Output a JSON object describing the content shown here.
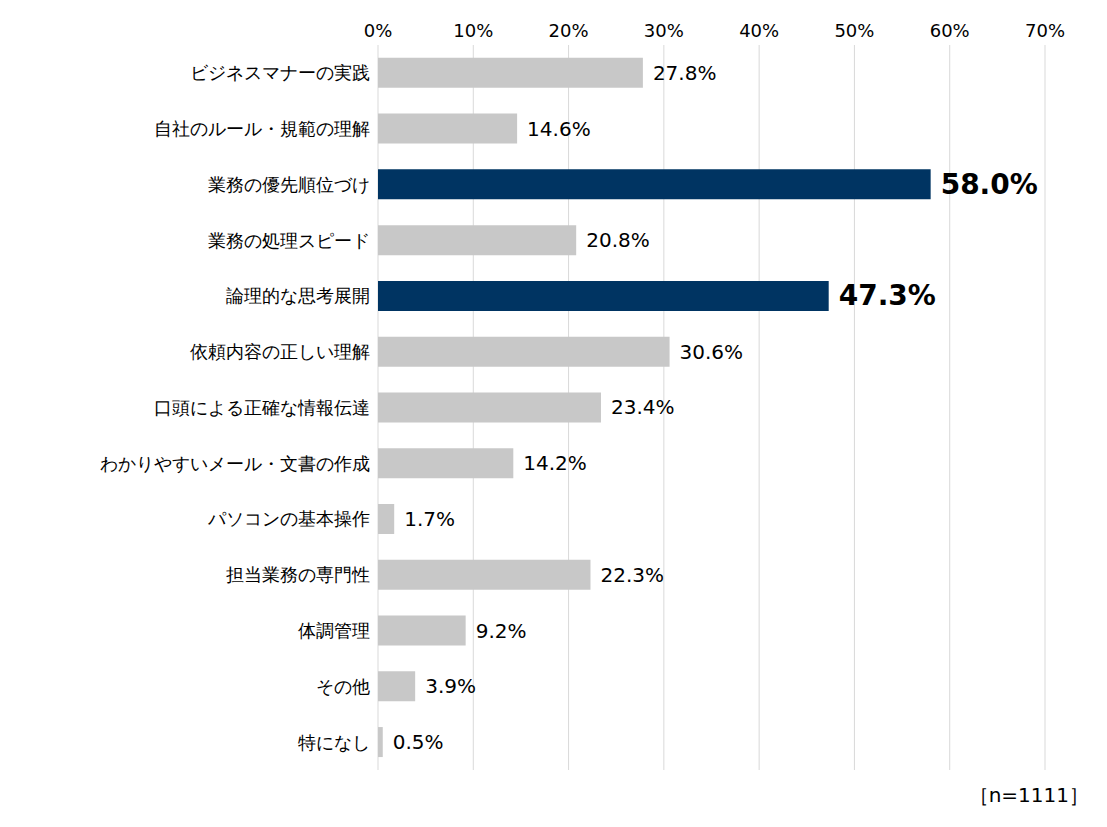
{
  "chart_data": {
    "type": "bar",
    "orientation": "horizontal",
    "categories": [
      "ビジネスマナーの実践",
      "自社のルール・規範の理解",
      "業務の優先順位づけ",
      "業務の処理スピード",
      "論理的な思考展開",
      "依頼内容の正しい理解",
      "口頭による正確な情報伝達",
      "わかりやすいメール・文書の作成",
      "パソコンの基本操作",
      "担当業務の専門性",
      "体調管理",
      "その他",
      "特になし"
    ],
    "values": [
      27.8,
      14.6,
      58.0,
      20.8,
      47.3,
      30.6,
      23.4,
      14.2,
      1.7,
      22.3,
      9.2,
      3.9,
      0.5
    ],
    "value_labels": [
      "27.8%",
      "14.6%",
      "58.0%",
      "20.8%",
      "47.3%",
      "30.6%",
      "23.4%",
      "14.2%",
      "1.7%",
      "22.3%",
      "9.2%",
      "3.9%",
      "0.5%"
    ],
    "colors": [
      "#c8c8c8",
      "#c8c8c8",
      "#003462",
      "#c8c8c8",
      "#003462",
      "#c8c8c8",
      "#c8c8c8",
      "#c8c8c8",
      "#c8c8c8",
      "#c8c8c8",
      "#c8c8c8",
      "#c8c8c8",
      "#c8c8c8"
    ],
    "xlim": [
      0,
      70
    ],
    "xticks": [
      {
        "value": 0,
        "label": "0%"
      },
      {
        "value": 10,
        "label": "10%"
      },
      {
        "value": 20,
        "label": "20%"
      },
      {
        "value": 30,
        "label": "30%"
      },
      {
        "value": 40,
        "label": "40%"
      },
      {
        "value": 50,
        "label": "50%"
      },
      {
        "value": 60,
        "label": "60%"
      },
      {
        "value": 70,
        "label": "70%"
      }
    ],
    "grid": true,
    "data_labels": true,
    "annotation": "［n=1111］"
  }
}
